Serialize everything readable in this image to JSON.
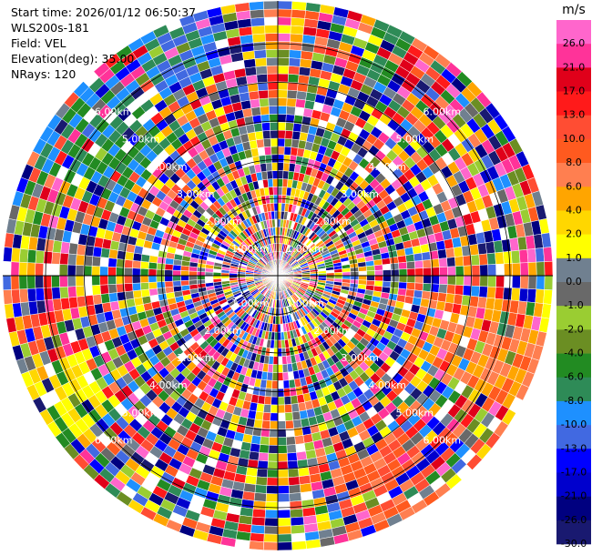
{
  "info": {
    "start_time": "Start time: 2026/01/12 06:50:37",
    "site": "WLS200s-181",
    "field": "Field: VEL",
    "elevation": "Elevation(deg): 35.00",
    "nrays": "NRays: 120"
  },
  "chart_data": {
    "type": "heatmap",
    "projection": "polar-ppi",
    "field": "VEL",
    "nrays": 120,
    "elevation_deg": 35.0,
    "max_range_km": 7.0,
    "range_ring_labels": [
      "1.00km",
      "2.00km",
      "3.00km",
      "4.00km",
      "5.00km",
      "6.00km"
    ],
    "range_rings_km": [
      1,
      2,
      3,
      4,
      5,
      6
    ],
    "colorbar": {
      "unit": "m/s",
      "ticks": [
        "26.0",
        "21.0",
        "17.0",
        "13.0",
        "10.0",
        "8.0",
        "6.0",
        "4.0",
        "2.0",
        "1.0",
        "0.0",
        "-1.0",
        "-2.0",
        "-4.0",
        "-6.0",
        "-8.0",
        "-10.0",
        "-13.0",
        "-17.0",
        "-21.0",
        "-26.0",
        "-30.0"
      ],
      "bounds": [
        30,
        26,
        21,
        17,
        13,
        10,
        8,
        6,
        4,
        2,
        1,
        0,
        -1,
        -2,
        -4,
        -6,
        -8,
        -10,
        -13,
        -17,
        -21,
        -26,
        -30
      ],
      "colors": [
        "#ff66cc",
        "#ff3399",
        "#e0001a",
        "#ff1a1a",
        "#ff4d33",
        "#ff5a1f",
        "#ff7f50",
        "#ffa500",
        "#ffd700",
        "#ffff00",
        "#708090",
        "#696969",
        "#9acd32",
        "#6b8e23",
        "#228b22",
        "#2e8b57",
        "#1e90ff",
        "#4169e1",
        "#0000ff",
        "#0000cd",
        "#000080",
        "#191970"
      ]
    },
    "grid": true
  }
}
